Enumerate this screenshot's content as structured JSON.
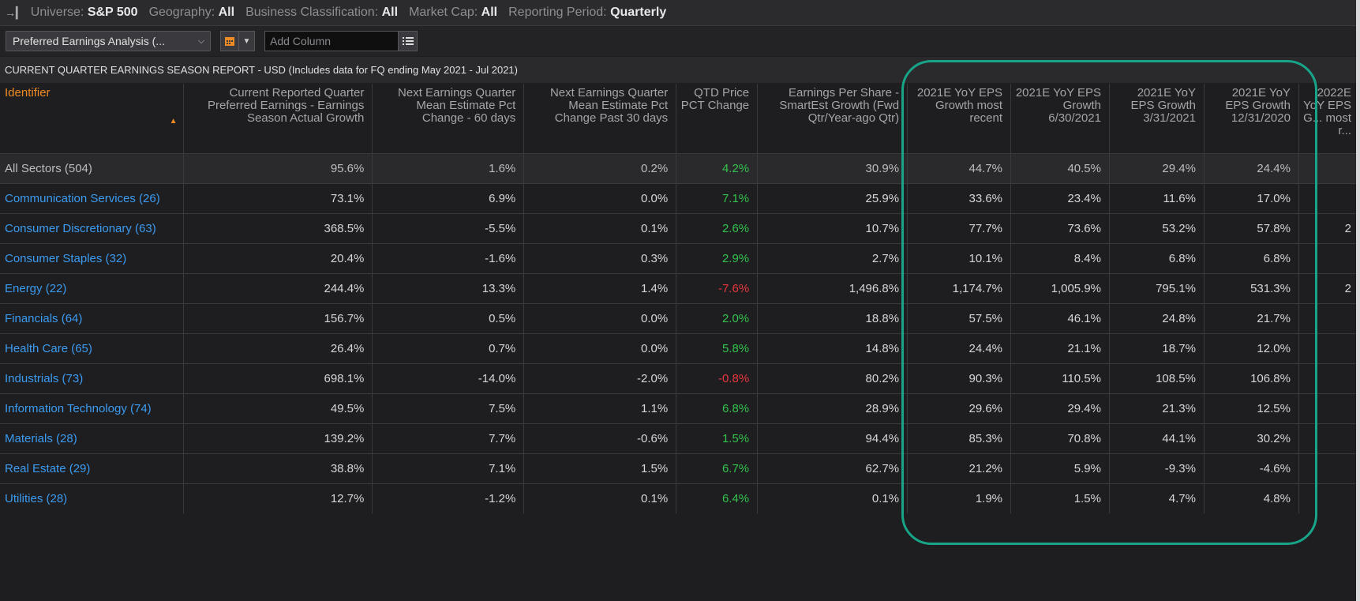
{
  "topbar": {
    "universe_label": "Universe:",
    "universe_value": "S&P 500",
    "geography_label": "Geography:",
    "geography_value": "All",
    "business_label": "Business Classification:",
    "business_value": "All",
    "marketcap_label": "Market Cap:",
    "marketcap_value": "All",
    "period_label": "Reporting Period:",
    "period_value": "Quarterly"
  },
  "toolbar": {
    "view_select": "Preferred Earnings Analysis (...",
    "add_column_placeholder": "Add Column"
  },
  "report_title": "CURRENT QUARTER EARNINGS SEASON REPORT - USD (Includes data for FQ ending May 2021 - Jul 2021)",
  "columns": [
    "Identifier",
    "Current Reported Quarter Preferred Earnings - Earnings Season Actual Growth",
    "Next Earnings Quarter Mean Estimate Pct Change - 60 days",
    "Next Earnings Quarter Mean Estimate Pct Change Past 30 days",
    "QTD Price PCT Change",
    "Earnings Per Share - SmartEst Growth (Fwd Qtr/Year-ago Qtr)",
    "2021E YoY EPS Growth most recent",
    "2021E YoY EPS Growth 6/30/2021",
    "2021E YoY EPS Growth 3/31/2021",
    "2021E YoY EPS Growth 12/31/2020",
    "2022E YoY EPS G... most r..."
  ],
  "rows": [
    {
      "name": "All Sectors (504)",
      "c1": "95.6%",
      "c2": "1.6%",
      "c3": "0.2%",
      "c4": "4.2%",
      "c5": "30.9%",
      "c6": "44.7%",
      "c7": "40.5%",
      "c8": "29.4%",
      "c9": "24.4%",
      "c10": ""
    },
    {
      "name": "Communication Services (26)",
      "c1": "73.1%",
      "c2": "6.9%",
      "c3": "0.0%",
      "c4": "7.1%",
      "c5": "25.9%",
      "c6": "33.6%",
      "c7": "23.4%",
      "c8": "11.6%",
      "c9": "17.0%",
      "c10": ""
    },
    {
      "name": "Consumer Discretionary (63)",
      "c1": "368.5%",
      "c2": "-5.5%",
      "c3": "0.1%",
      "c4": "2.6%",
      "c5": "10.7%",
      "c6": "77.7%",
      "c7": "73.6%",
      "c8": "53.2%",
      "c9": "57.8%",
      "c10": "2"
    },
    {
      "name": "Consumer Staples (32)",
      "c1": "20.4%",
      "c2": "-1.6%",
      "c3": "0.3%",
      "c4": "2.9%",
      "c5": "2.7%",
      "c6": "10.1%",
      "c7": "8.4%",
      "c8": "6.8%",
      "c9": "6.8%",
      "c10": ""
    },
    {
      "name": "Energy (22)",
      "c1": "244.4%",
      "c2": "13.3%",
      "c3": "1.4%",
      "c4": "-7.6%",
      "c5": "1,496.8%",
      "c6": "1,174.7%",
      "c7": "1,005.9%",
      "c8": "795.1%",
      "c9": "531.3%",
      "c10": "2"
    },
    {
      "name": "Financials (64)",
      "c1": "156.7%",
      "c2": "0.5%",
      "c3": "0.0%",
      "c4": "2.0%",
      "c5": "18.8%",
      "c6": "57.5%",
      "c7": "46.1%",
      "c8": "24.8%",
      "c9": "21.7%",
      "c10": ""
    },
    {
      "name": "Health Care (65)",
      "c1": "26.4%",
      "c2": "0.7%",
      "c3": "0.0%",
      "c4": "5.8%",
      "c5": "14.8%",
      "c6": "24.4%",
      "c7": "21.1%",
      "c8": "18.7%",
      "c9": "12.0%",
      "c10": ""
    },
    {
      "name": "Industrials (73)",
      "c1": "698.1%",
      "c2": "-14.0%",
      "c3": "-2.0%",
      "c4": "-0.8%",
      "c5": "80.2%",
      "c6": "90.3%",
      "c7": "110.5%",
      "c8": "108.5%",
      "c9": "106.8%",
      "c10": ""
    },
    {
      "name": "Information Technology (74)",
      "c1": "49.5%",
      "c2": "7.5%",
      "c3": "1.1%",
      "c4": "6.8%",
      "c5": "28.9%",
      "c6": "29.6%",
      "c7": "29.4%",
      "c8": "21.3%",
      "c9": "12.5%",
      "c10": ""
    },
    {
      "name": "Materials (28)",
      "c1": "139.2%",
      "c2": "7.7%",
      "c3": "-0.6%",
      "c4": "1.5%",
      "c5": "94.4%",
      "c6": "85.3%",
      "c7": "70.8%",
      "c8": "44.1%",
      "c9": "30.2%",
      "c10": ""
    },
    {
      "name": "Real Estate (29)",
      "c1": "38.8%",
      "c2": "7.1%",
      "c3": "1.5%",
      "c4": "6.7%",
      "c5": "62.7%",
      "c6": "21.2%",
      "c7": "5.9%",
      "c8": "-9.3%",
      "c9": "-4.6%",
      "c10": ""
    },
    {
      "name": "Utilities (28)",
      "c1": "12.7%",
      "c2": "-1.2%",
      "c3": "0.1%",
      "c4": "6.4%",
      "c5": "0.1%",
      "c6": "1.9%",
      "c7": "1.5%",
      "c8": "4.7%",
      "c9": "4.8%",
      "c10": ""
    }
  ],
  "colors": {
    "positive": "#33c24d",
    "negative": "#e8353d",
    "link": "#3b9bf0",
    "identifier_header": "#f08a24",
    "highlight": "#18a488"
  }
}
